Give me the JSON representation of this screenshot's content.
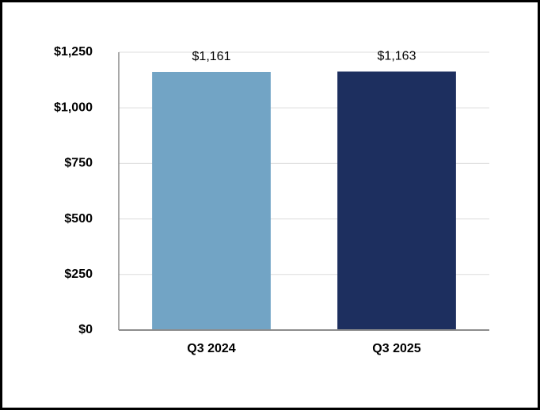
{
  "chart_data": {
    "type": "bar",
    "categories": [
      "Q3 2024",
      "Q3 2025"
    ],
    "values": [
      1161,
      1163
    ],
    "value_labels": [
      "$1,161",
      "$1,163"
    ],
    "colors": [
      "#72a4c5",
      "#1d2f5f"
    ],
    "ylim": [
      0,
      1250
    ],
    "yticks": [
      {
        "value": 0,
        "label": "$0"
      },
      {
        "value": 250,
        "label": "$250"
      },
      {
        "value": 500,
        "label": "$500"
      },
      {
        "value": 750,
        "label": "$750"
      },
      {
        "value": 1000,
        "label": "$1,000"
      },
      {
        "value": 1250,
        "label": "$1,250"
      }
    ],
    "grid": true
  }
}
